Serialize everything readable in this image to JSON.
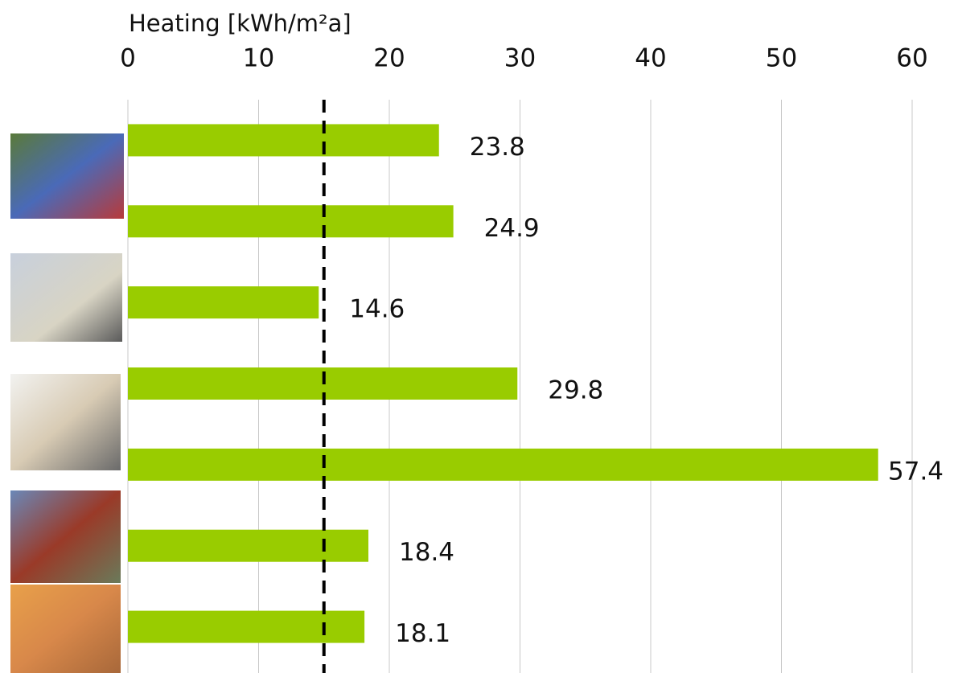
{
  "chart_data": {
    "type": "bar",
    "orientation": "horizontal",
    "xlabel": "Heating [kWh/m²a]",
    "categories": [
      null,
      null,
      null,
      null,
      null,
      null,
      null
    ],
    "values": [
      23.8,
      24.9,
      14.6,
      29.8,
      57.4,
      18.4,
      18.1
    ],
    "color": "#99cc00",
    "xlim": [
      0,
      60
    ],
    "xticks": [
      0,
      10,
      20,
      30,
      40,
      50,
      60
    ],
    "grid": true,
    "reference_line": {
      "value": 15,
      "color": "#000000",
      "style": "dashed"
    }
  }
}
